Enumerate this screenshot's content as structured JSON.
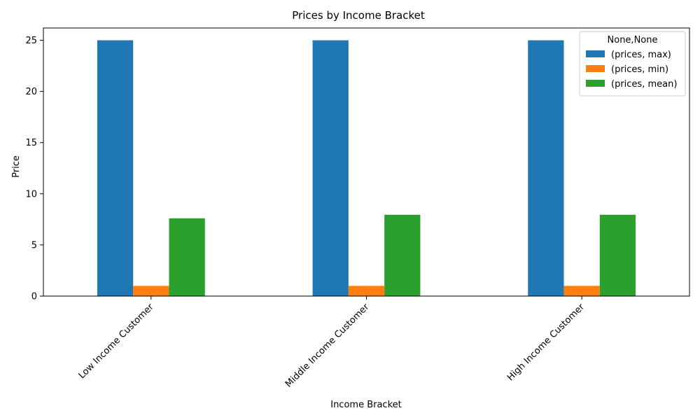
{
  "chart_data": {
    "type": "bar",
    "title": "Prices by Income Bracket",
    "xlabel": "Income Bracket",
    "ylabel": "Price",
    "categories": [
      "Low Income Customer",
      "Middle Income Customer",
      "High Income Customer"
    ],
    "series": [
      {
        "name": "(prices, max)",
        "values": [
          25,
          25,
          25
        ],
        "color": "#1f77b4"
      },
      {
        "name": "(prices, min)",
        "values": [
          1,
          1,
          1
        ],
        "color": "#ff7f0e"
      },
      {
        "name": "(prices, mean)",
        "values": [
          7.6,
          7.95,
          7.95
        ],
        "color": "#2ca02c"
      }
    ],
    "ylim": [
      0,
      26.2
    ],
    "yticks": [
      0,
      5,
      10,
      15,
      20,
      25
    ],
    "legend_title": "None,None",
    "legend_position": "top-right",
    "grid": false
  }
}
